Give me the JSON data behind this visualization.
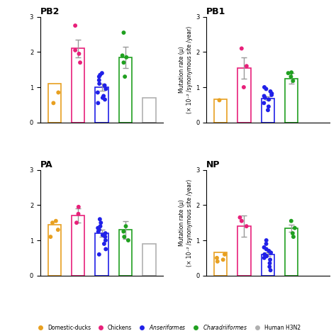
{
  "panels": [
    "PB2",
    "PB1",
    "PA",
    "NP"
  ],
  "groups": [
    "Domestic-ducks",
    "Chickens",
    "Anseriformes",
    "Charadriiformes",
    "Human H3N2"
  ],
  "colors": [
    "#E8A020",
    "#E8207A",
    "#2020E8",
    "#20A020",
    "#B0B0B0"
  ],
  "ylim": [
    0,
    3
  ],
  "yticks": [
    0,
    1,
    2,
    3
  ],
  "PB2": {
    "bar_heights": [
      1.1,
      2.1,
      1.0,
      1.85,
      0.7
    ],
    "bar_errors": [
      0.0,
      0.25,
      0.1,
      0.3,
      0.0
    ],
    "dots": {
      "Domestic-ducks": [
        0.55,
        0.85
      ],
      "Chickens": [
        1.7,
        1.95,
        2.05,
        2.75
      ],
      "Anseriformes": [
        0.55,
        0.65,
        0.7,
        0.75,
        0.85,
        0.95,
        1.05,
        1.1,
        1.2,
        1.3,
        1.35,
        1.4
      ],
      "Charadriiformes": [
        1.3,
        1.7,
        1.85,
        1.9,
        2.55
      ],
      "Human H3N2": []
    }
  },
  "PB1": {
    "bar_heights": [
      0.65,
      1.55,
      0.68,
      1.25,
      0.0
    ],
    "bar_errors": [
      0.0,
      0.3,
      0.05,
      0.15,
      0.0
    ],
    "dots": {
      "Domestic-ducks": [
        0.63
      ],
      "Chickens": [
        1.0,
        1.6,
        2.1
      ],
      "Anseriformes": [
        0.35,
        0.45,
        0.55,
        0.65,
        0.7,
        0.75,
        0.78,
        0.82,
        0.88,
        0.95,
        1.0
      ],
      "Charadriiformes": [
        1.18,
        1.3,
        1.4,
        1.42
      ],
      "Human H3N2": []
    }
  },
  "PA": {
    "bar_heights": [
      1.45,
      1.7,
      1.2,
      1.3,
      0.9
    ],
    "bar_errors": [
      0.0,
      0.2,
      0.1,
      0.25,
      0.0
    ],
    "dots": {
      "Domestic-ducks": [
        1.1,
        1.3,
        1.5,
        1.55
      ],
      "Chickens": [
        1.5,
        1.75,
        1.95
      ],
      "Anseriformes": [
        0.6,
        0.75,
        0.9,
        1.0,
        1.1,
        1.15,
        1.2,
        1.25,
        1.3,
        1.35,
        1.4,
        1.5,
        1.6
      ],
      "Charadriiformes": [
        1.0,
        1.1,
        1.25,
        1.4
      ],
      "Human H3N2": []
    }
  },
  "NP": {
    "bar_heights": [
      0.65,
      1.4,
      0.6,
      1.35,
      0.0
    ],
    "bar_errors": [
      0.0,
      0.3,
      0.05,
      0.1,
      0.0
    ],
    "dots": {
      "Domestic-ducks": [
        0.4,
        0.45,
        0.5,
        0.6
      ],
      "Chickens": [
        1.4,
        1.55,
        1.65
      ],
      "Anseriformes": [
        0.15,
        0.25,
        0.35,
        0.45,
        0.5,
        0.55,
        0.6,
        0.65,
        0.7,
        0.75,
        0.8,
        0.9,
        1.0
      ],
      "Charadriiformes": [
        1.1,
        1.2,
        1.35,
        1.55
      ],
      "Human H3N2": []
    }
  }
}
